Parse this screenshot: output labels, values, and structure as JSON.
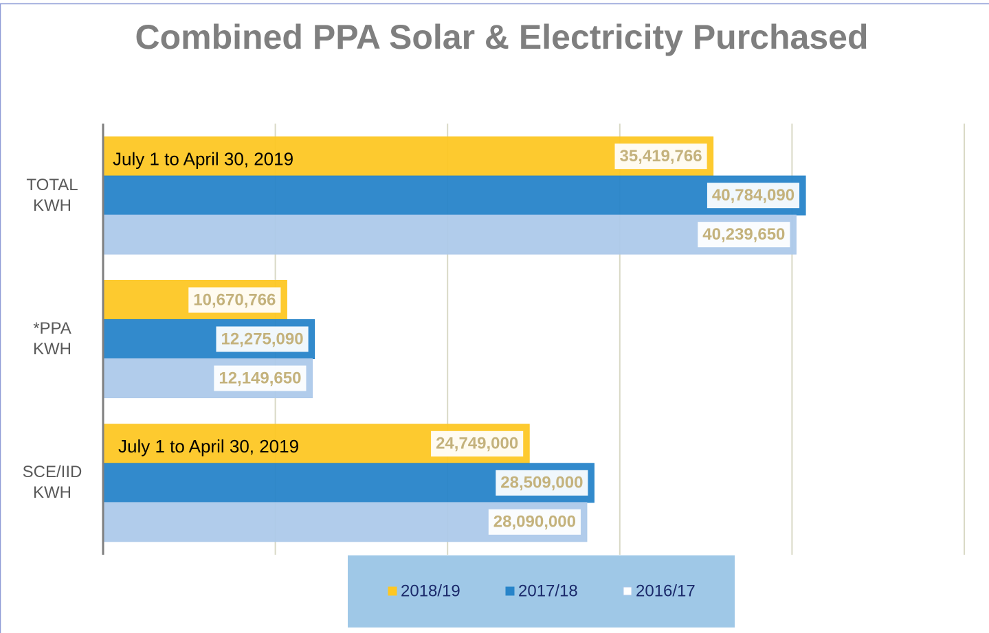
{
  "chart_data": {
    "type": "bar",
    "orientation": "horizontal",
    "title": "Combined PPA Solar & Electricity Purchased",
    "categories": [
      "TOTAL KWH",
      "*PPA KWH",
      "SCE/IID KWH"
    ],
    "series": [
      {
        "name": "2018/19",
        "color": "#fdc724",
        "values": [
          35419766,
          10670766,
          24749000
        ],
        "value_labels": [
          "35,419,766",
          "10,670,766",
          "24,749,000"
        ]
      },
      {
        "name": "2017/18",
        "color": "#2784c9",
        "values": [
          40784090,
          12275090,
          28509000
        ],
        "value_labels": [
          "40,784,090",
          "12,275,090",
          "28,509,000"
        ]
      },
      {
        "name": "2016/17",
        "color": "#adc9ea",
        "values": [
          40239650,
          12149650,
          28090000
        ],
        "value_labels": [
          "40,239,650",
          "12,149,650",
          "28,090,000"
        ]
      }
    ],
    "annotations": [
      {
        "text": "July 1 to April 30, 2019",
        "category": "TOTAL KWH"
      },
      {
        "text": "July 1 to April 30, 2019",
        "category": "SCE/IID KWH"
      }
    ],
    "xlim": [
      0,
      50000000
    ],
    "xticks": [
      0,
      10000000,
      20000000,
      30000000,
      40000000,
      50000000
    ],
    "grid": true,
    "legend": "bottom"
  }
}
